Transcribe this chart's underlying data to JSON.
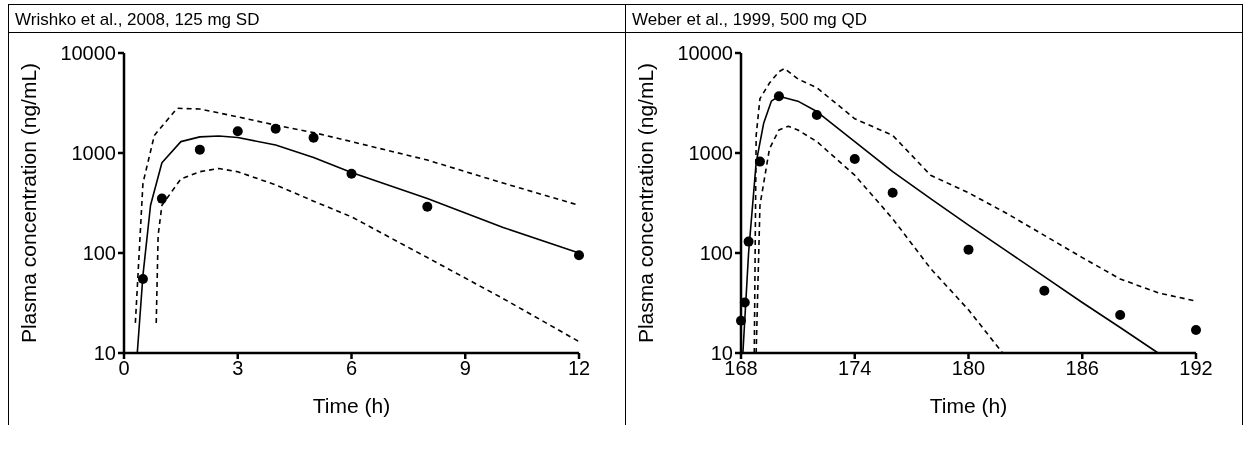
{
  "chart_data": [
    {
      "type": "line",
      "title": "Wrishko et al., 2008, 125 mg SD",
      "xlabel": "Time (h)",
      "ylabel": "Plasma concentration (ng/mL)",
      "log": "y",
      "xlim": [
        0,
        12
      ],
      "xticks": [
        0,
        3,
        6,
        9,
        12
      ],
      "ylim": [
        10,
        10000
      ],
      "yticks": [
        10,
        100,
        1000,
        10000
      ],
      "series": [
        {
          "type": "scatter",
          "color": "#000000",
          "marker": "circle",
          "x": [
            0.5,
            1,
            2,
            3,
            4,
            5,
            6,
            8,
            12
          ],
          "values": [
            55,
            350,
            1080,
            1650,
            1750,
            1420,
            620,
            290,
            95
          ]
        },
        {
          "color": "#000000",
          "line_style": "solid",
          "x": [
            0.35,
            0.5,
            0.7,
            1,
            1.5,
            2,
            2.5,
            3,
            4,
            5,
            6,
            8,
            10,
            12
          ],
          "values": [
            10,
            60,
            300,
            800,
            1300,
            1450,
            1480,
            1430,
            1200,
            900,
            640,
            350,
            180,
            100
          ]
        },
        {
          "color": "#000000",
          "line_style": "dashed",
          "x": [
            0.3,
            0.5,
            0.8,
            1.4,
            2,
            3,
            4,
            5,
            6,
            8,
            10,
            12
          ],
          "values": [
            20,
            500,
            1500,
            2800,
            2750,
            2300,
            1900,
            1600,
            1300,
            850,
            500,
            300
          ]
        },
        {
          "color": "#000000",
          "line_style": "dashed",
          "x": [
            0.85,
            0.9,
            1,
            1.5,
            2,
            2.5,
            3,
            4,
            5,
            6,
            8,
            10,
            12
          ],
          "values": [
            20,
            150,
            300,
            550,
            650,
            700,
            650,
            480,
            330,
            230,
            90,
            35,
            13
          ]
        }
      ]
    },
    {
      "type": "line",
      "title": "Weber et al., 1999, 500 mg QD",
      "xlabel": "Time (h)",
      "ylabel": "Plasma concentration (ng/mL)",
      "log": "y",
      "xlim": [
        168,
        192
      ],
      "xticks": [
        168,
        174,
        180,
        186,
        192
      ],
      "ylim": [
        10,
        10000
      ],
      "yticks": [
        10,
        100,
        1000,
        10000
      ],
      "series": [
        {
          "type": "scatter",
          "color": "#000000",
          "marker": "circle",
          "x": [
            168,
            168.2,
            168.4,
            169,
            170,
            172,
            174,
            176,
            180,
            184,
            188,
            192
          ],
          "values": [
            21,
            32,
            130,
            820,
            3700,
            2400,
            870,
            400,
            108,
            42,
            24,
            17
          ]
        },
        {
          "color": "#000000",
          "line_style": "solid",
          "x": [
            168.1,
            168.4,
            168.8,
            169.2,
            169.6,
            170,
            171,
            172,
            174,
            176,
            178,
            180,
            182,
            184,
            186,
            188,
            190
          ],
          "values": [
            10,
            100,
            800,
            2000,
            3300,
            3700,
            3300,
            2600,
            1300,
            650,
            350,
            190,
            105,
            58,
            32,
            18,
            10
          ]
        },
        {
          "color": "#000000",
          "line_style": "dashed",
          "x": [
            168.7,
            168.8,
            169,
            169.5,
            170,
            170.3,
            171,
            172,
            174,
            176,
            178,
            180,
            182,
            184,
            186,
            188,
            190,
            192
          ],
          "values": [
            10,
            1500,
            3500,
            5000,
            6500,
            7000,
            5500,
            4500,
            2200,
            1500,
            600,
            400,
            250,
            150,
            90,
            55,
            40,
            33
          ]
        },
        {
          "color": "#000000",
          "line_style": "dashed",
          "x": [
            168.8,
            169,
            169.5,
            170,
            170.5,
            171,
            172,
            174,
            176,
            178,
            180,
            181.8
          ],
          "values": [
            10,
            300,
            1100,
            1700,
            1850,
            1700,
            1300,
            600,
            220,
            70,
            27,
            10
          ]
        }
      ]
    }
  ]
}
